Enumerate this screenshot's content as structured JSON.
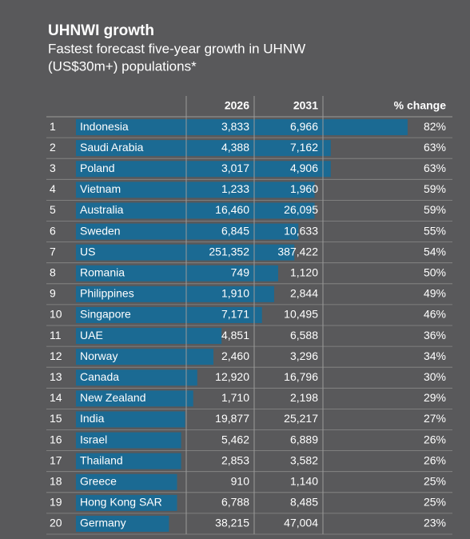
{
  "header": {
    "title": "UHNWI growth",
    "subtitle_lines": [
      "Fastest forecast five-year growth in UHNW",
      "(US$30m+) populations*"
    ]
  },
  "table": {
    "columns": [
      "2026",
      "2031",
      "% change"
    ],
    "rows": [
      {
        "rank": "1",
        "country": "Indonesia",
        "y2026": "3,833",
        "y2031": "6,966",
        "change": {
          "value": 82,
          "label": "82%"
        }
      },
      {
        "rank": "2",
        "country": "Saudi Arabia",
        "y2026": "4,388",
        "y2031": "7,162",
        "change": {
          "value": 63,
          "label": "63%"
        }
      },
      {
        "rank": "3",
        "country": "Poland",
        "y2026": "3,017",
        "y2031": "4,906",
        "change": {
          "value": 63,
          "label": "63%"
        }
      },
      {
        "rank": "4",
        "country": "Vietnam",
        "y2026": "1,233",
        "y2031": "1,960",
        "change": {
          "value": 59,
          "label": "59%"
        }
      },
      {
        "rank": "5",
        "country": "Australia",
        "y2026": "16,460",
        "y2031": "26,095",
        "change": {
          "value": 59,
          "label": "59%"
        }
      },
      {
        "rank": "6",
        "country": "Sweden",
        "y2026": "6,845",
        "y2031": "10,633",
        "change": {
          "value": 55,
          "label": "55%"
        }
      },
      {
        "rank": "7",
        "country": "US",
        "y2026": "251,352",
        "y2031": "387,422",
        "change": {
          "value": 54,
          "label": "54%"
        }
      },
      {
        "rank": "8",
        "country": "Romania",
        "y2026": "749",
        "y2031": "1,120",
        "change": {
          "value": 50,
          "label": "50%"
        }
      },
      {
        "rank": "9",
        "country": "Philippines",
        "y2026": "1,910",
        "y2031": "2,844",
        "change": {
          "value": 49,
          "label": "49%"
        }
      },
      {
        "rank": "10",
        "country": "Singapore",
        "y2026": "7,171",
        "y2031": "10,495",
        "change": {
          "value": 46,
          "label": "46%"
        }
      },
      {
        "rank": "11",
        "country": "UAE",
        "y2026": "4,851",
        "y2031": "6,588",
        "change": {
          "value": 36,
          "label": "36%"
        }
      },
      {
        "rank": "12",
        "country": "Norway",
        "y2026": "2,460",
        "y2031": "3,296",
        "change": {
          "value": 34,
          "label": "34%"
        }
      },
      {
        "rank": "13",
        "country": "Canada",
        "y2026": "12,920",
        "y2031": "16,796",
        "change": {
          "value": 30,
          "label": "30%"
        }
      },
      {
        "rank": "14",
        "country": "New Zealand",
        "y2026": "1,710",
        "y2031": "2,198",
        "change": {
          "value": 29,
          "label": "29%"
        }
      },
      {
        "rank": "15",
        "country": "India",
        "y2026": "19,877",
        "y2031": "25,217",
        "change": {
          "value": 27,
          "label": "27%"
        }
      },
      {
        "rank": "16",
        "country": "Israel",
        "y2026": "5,462",
        "y2031": "6,889",
        "change": {
          "value": 26,
          "label": "26%"
        }
      },
      {
        "rank": "17",
        "country": "Thailand",
        "y2026": "2,853",
        "y2031": "3,582",
        "change": {
          "value": 26,
          "label": "26%"
        }
      },
      {
        "rank": "18",
        "country": "Greece",
        "y2026": "910",
        "y2031": "1,140",
        "change": {
          "value": 25,
          "label": "25%"
        }
      },
      {
        "rank": "19",
        "country": "Hong Kong SAR",
        "y2026": "6,788",
        "y2031": "8,485",
        "change": {
          "value": 25,
          "label": "25%"
        }
      },
      {
        "rank": "20",
        "country": "Germany",
        "y2026": "38,215",
        "y2031": "47,004",
        "change": {
          "value": 23,
          "label": "23%"
        }
      }
    ]
  }
}
